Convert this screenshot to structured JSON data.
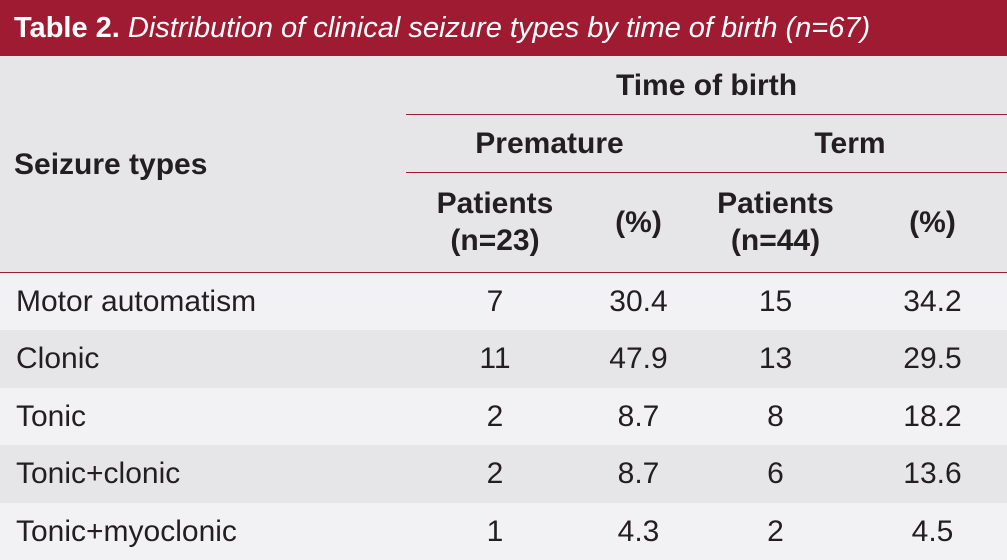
{
  "table": {
    "label": "Table 2.",
    "caption": "Distribution of clinical seizure types by time of birth (n=67)",
    "headers": {
      "seizure_types": "Seizure types",
      "time_of_birth": "Time of birth",
      "premature": "Premature",
      "term": "Term",
      "premature_patients": "Patients\n(n=23)",
      "premature_percent": "(%)",
      "term_patients": "Patients\n(n=44)",
      "term_percent": "(%)"
    },
    "rows": [
      {
        "type": "Motor automatism",
        "premature_patients": "7",
        "premature_percent": "30.4",
        "term_patients": "15",
        "term_percent": "34.2"
      },
      {
        "type": "Clonic",
        "premature_patients": "11",
        "premature_percent": "47.9",
        "term_patients": "13",
        "term_percent": "29.5"
      },
      {
        "type": "Tonic",
        "premature_patients": "2",
        "premature_percent": "8.7",
        "term_patients": "8",
        "term_percent": "18.2"
      },
      {
        "type": "Tonic+clonic",
        "premature_patients": "2",
        "premature_percent": "8.7",
        "term_patients": "6",
        "term_percent": "13.6"
      },
      {
        "type": "Tonic+myoclonic",
        "premature_patients": "1",
        "premature_percent": "4.3",
        "term_patients": "2",
        "term_percent": "4.5"
      }
    ]
  },
  "colors": {
    "accent": "#9f1b32",
    "header_bg": "#e6e6e8",
    "row_light": "#f2f2f4",
    "row_dark": "#e6e6e8",
    "text": "#231f20"
  }
}
